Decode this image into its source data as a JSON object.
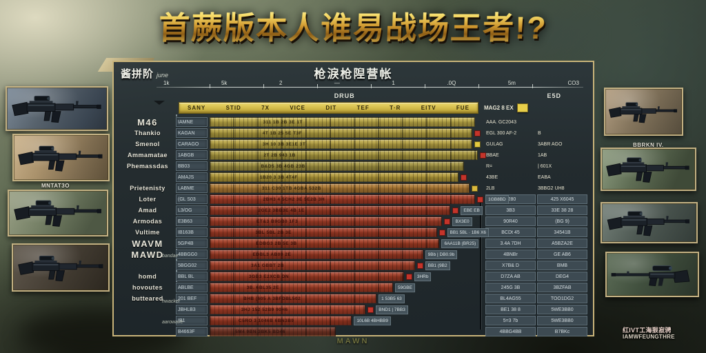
{
  "title": "首蕨版本人谁易战场王者!?",
  "colors": {
    "accent_gold": "#c9b47a",
    "bar_yellow": "#cdb84d",
    "bar_orange": "#bd8438",
    "bar_red": "#b2432a",
    "panel_bg": "#2a3438",
    "badge_red": "#c4342a",
    "badge_yellow": "#e3c93f"
  },
  "panel": {
    "corner_label": "酱拼阶",
    "corner_script": "june",
    "title": "枪淚枪隉营帐",
    "axis": {
      "ticks": [
        "1k",
        "5k",
        "2",
        "—",
        "1",
        ".0Q",
        "5m",
        "CO3"
      ],
      "label_center": "DRUB",
      "label_right": "E5D"
    },
    "header": {
      "columns": [
        "SANY",
        "STID",
        "7X",
        "VICE",
        "DIT",
        "TEF",
        "T·R",
        "EITV",
        "FUE"
      ],
      "right_label": "MAG2 8 EX",
      "swatch_color": "#e8cf4a"
    },
    "annotations": [
      "bandae",
      "hwacker",
      "aarowave"
    ],
    "caption": "MAWN",
    "rows": [
      {
        "g": "y",
        "big": true,
        "side": "M46",
        "label": "IAMNE",
        "w": "97%",
        "c": "#cdb84d",
        "inline": "311 1B 2B 3E 1T",
        "b": "",
        "chip": "",
        "v1": "AAA. GC2043",
        "v2": ""
      },
      {
        "g": "y",
        "side": "Thankio",
        "label": "KAGAN",
        "w": "96%",
        "c": "#bfab45",
        "inline": "4T 1B 25 5E T3F",
        "b": "#c4342a",
        "chip": "",
        "v1": "EGL 300 AF-2",
        "v2": "B"
      },
      {
        "g": "y",
        "side": "Smenol",
        "label": "CARAGO",
        "w": "96%",
        "c": "#c7b249",
        "inline": "3H 10 3B 3E1E 3T",
        "b": "#e3c93f",
        "chip": "",
        "v1": "GULAG",
        "v2": "3ABR AGO"
      },
      {
        "g": "y",
        "side": "Ammamatae",
        "label": "1ABGB",
        "w": "98%",
        "c": "#b9a744",
        "inline": "2T 2B 943 1B",
        "b": "#c4342a",
        "chip": "",
        "v1": "BBAE",
        "v2": "1AB"
      },
      {
        "g": "y",
        "side": "Phemassdas",
        "label": "BB03",
        "w": "93%",
        "c": "#b0a046",
        "inline": "B&D5  3B 4GB 23B",
        "b": "",
        "chip": "",
        "v1": "R=",
        "v2": "| 601X"
      },
      {
        "g": "y",
        "side": "",
        "label": "AMAJS",
        "w": "91%",
        "c": "#c2a83e",
        "inline": "1B20 3 3B 4T4F",
        "b": "#c4342a",
        "chip": "",
        "v1": "43BE",
        "v2": "EABA"
      },
      {
        "g": "o",
        "side": "Prietenisty",
        "label": "LABME",
        "w": "95%",
        "c": "#bd8438",
        "inline": "311 C30 1TB 4GBA 532B",
        "b": "#d9b83c",
        "chip": "",
        "v1": "2LB",
        "v2": "3BBG2 UH8"
      },
      {
        "g": "r",
        "side": "Loter",
        "label": "(GL S03",
        "w": "97%",
        "c": "#b5422a",
        "inline": "2BH3 4 5CH2 3E 5E2B 3H",
        "b": "#c4342a",
        "chip": "1GB8BD",
        "v1": "5280",
        "v2": "425 X6045"
      },
      {
        "g": "r",
        "side": "Amad",
        "label": "L3/OG",
        "w": "88%",
        "c": "#a93e27",
        "inline": "2GE2  3BB3E 4B 1E",
        "b": "#c4342a",
        "chip": "EBE EB",
        "v1": "3B3",
        "v2": "33E 38 28"
      },
      {
        "g": "r",
        "side": "Armodas",
        "label": "E3B63",
        "w": "85%",
        "c": "#b2432b",
        "inline": "ET&3  B9GB0 1F3",
        "b": "#c4342a",
        "chip": "BX3E0",
        "v1": "90R40",
        "v2": "(BG 9)"
      },
      {
        "g": "r",
        "side": "Vultime",
        "label": "IB163B",
        "w": "83%",
        "c": "#ad3f28",
        "inline": "3BL 5BL 2B 3E",
        "b": "#c4342a",
        "chip": "BB1 5BL · 1B6 X6",
        "v1": "BCDt 45",
        "v2": "34541B"
      },
      {
        "g": "r",
        "big": true,
        "side": "WAVM",
        "label": "5GP4B",
        "w": "84%",
        "c": "#b04127",
        "inline": "EDBG3 2B 5E 3B",
        "b": "",
        "chip": "6AA11B (BR25)",
        "v1": "3.4A 7DH",
        "v2": "A5BZA2E"
      },
      {
        "g": "r",
        "big": true,
        "side": "MAWD",
        "label": "4BBGG0",
        "w": "78%",
        "c": "#a93e27",
        "inline": "EDBL3 AB09 2E",
        "b": "",
        "chip": "9Bb | DB0.9b",
        "v1": "4BNBr",
        "v2": "GE AB6"
      },
      {
        "g": "r",
        "side": "",
        "label": "5BGG02",
        "w": "75%",
        "c": "#b4452c",
        "inline": "3A1 GBBT 2B",
        "b": "#c4342a",
        "chip": "BB1 (9B2",
        "v1": "X7B& D",
        "v2": "BMB"
      },
      {
        "g": "r",
        "side": "homd",
        "label": "BBL BL",
        "w": "71%",
        "c": "#ac3f27",
        "inline": "3GB3  E2XCB DN",
        "b": "#c4342a",
        "chip": "3HRb",
        "v1": "D7ZA AB",
        "v2": "DEG4"
      },
      {
        "g": "r",
        "side": "hovoutes",
        "label": "ABLBE",
        "w": "67%",
        "c": "#b04228",
        "inline": "3B. 6BL35 2E",
        "b": "",
        "chip": "59GBE",
        "v1": "245G 3B",
        "v2": "3BZFAB"
      },
      {
        "g": "r",
        "side": "butteared",
        "label": "201 BEF",
        "w": "61%",
        "c": "#aa3d26",
        "inline": "BHB (605 A 3BFDBL502",
        "b": "",
        "chip": "1 53B5 63",
        "v1": "BL4AG55",
        "v2": "TOO1DG2"
      },
      {
        "g": "r",
        "side": "",
        "label": "JBHLB3",
        "w": "57%",
        "c": "#b3432a",
        "inline": "3HJ 152 52B9 90H6",
        "b": "#c4342a",
        "chip": "BND1 | 7BB3",
        "v1": "BE1 38 8",
        "v2": "5WE3BB0"
      },
      {
        "g": "r",
        "side": "",
        "label": "IB1",
        "w": "52%",
        "c": "#a73c25",
        "inline": "C5RO 3 1046B 6BN3B9",
        "b": "",
        "chip": "10L6B 4BHBB9",
        "v1": "5=3 7b",
        "v2": "5WE3BB0"
      },
      {
        "g": "rp",
        "side": "",
        "label": "B4663F",
        "w": "46%",
        "c": "#8f3722",
        "inline": "5M4 9BN 3BK5 BD46",
        "b": "",
        "chip": "",
        "v1": "4BBG4BB",
        "v2": "B7BKc"
      }
    ]
  },
  "left_cards": {
    "label_mid": "MNTAT3O"
  },
  "right_cards": {
    "label_top": "BBRKN IV."
  },
  "watermark": {
    "line1": "红IVT工海狠寂骋",
    "line2": "IAMWFEUNGTHRE"
  }
}
